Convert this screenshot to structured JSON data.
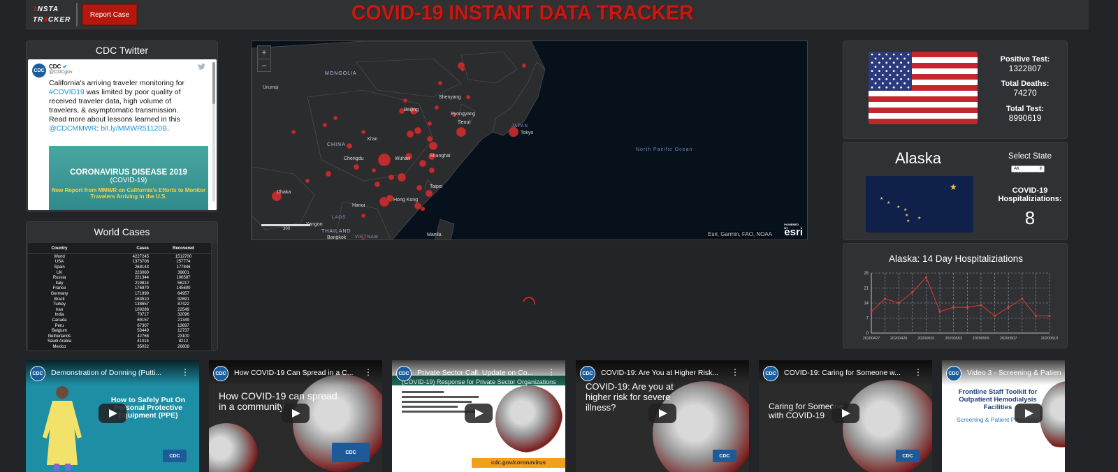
{
  "header": {
    "logo_line1_a": "1",
    "logo_line1_b": "NSTA",
    "logo_line2_a": "TR",
    "logo_line2_b": "9",
    "logo_line2_c": "CKER",
    "report_button": "Report Case",
    "title": "COVID-19 INSTANT DATA TRACKER"
  },
  "twitter": {
    "title": "CDC Twitter",
    "avatar": "CDC",
    "name": "CDC",
    "handle": "@CDCgov",
    "text_1": "California's arriving traveler monitoring for ",
    "hashtag": "#COVID19",
    "text_2": " was limited by poor quality of received traveler data, high volume of travelers, & asymptomatic transmission. Read more about lessons learned in this ",
    "mention": "@CDCMMWR",
    "text_3": ": ",
    "link": "bit.ly/MMWR51120B",
    "text_4": ".",
    "card_heading": "CORONAVIRUS DISEASE 2019",
    "card_sub": "(COVID-19)",
    "card_note": "New Report from MMWR on California's Efforts to Monitor Travelers Arriving in the U.S."
  },
  "world": {
    "title": "World Cases",
    "columns": [
      "Country",
      "Cases",
      "Recovered"
    ],
    "rows": [
      [
        "World",
        "4227245",
        "1512700"
      ],
      [
        "USA",
        "1373706",
        "257774"
      ],
      [
        "Spain",
        "268143",
        "177846"
      ],
      [
        "UK",
        "223060",
        "39801"
      ],
      [
        "Russia",
        "221344",
        "106587"
      ],
      [
        "Italy",
        "219814",
        "56217"
      ],
      [
        "France",
        "176970",
        "145600"
      ],
      [
        "Germany",
        "171999",
        "64957"
      ],
      [
        "Brazil",
        "163510",
        "92691"
      ],
      [
        "Turkey",
        "138657",
        "87422"
      ],
      [
        "Iran",
        "109286",
        "22549"
      ],
      [
        "India",
        "70717",
        "32096"
      ],
      [
        "Canada",
        "69157",
        "21349"
      ],
      [
        "Peru",
        "67307",
        "13697"
      ],
      [
        "Belgium",
        "53449",
        "12737"
      ],
      [
        "Netherlands",
        "42768",
        "23100"
      ],
      [
        "Saudi Arabia",
        "41014",
        "8212"
      ],
      [
        "Mexico",
        "35022",
        "26608"
      ]
    ]
  },
  "map": {
    "zoom_in": "+",
    "zoom_out": "−",
    "labels": [
      "MONGOLIA",
      "Urumqi",
      "Beijing",
      "Shenyang",
      "Pyongyang",
      "Seoul",
      "JAPAN",
      "Tokyo",
      "CHINA",
      "Xi'an",
      "Chengdu",
      "Wuhan",
      "Shanghai",
      "North Pacific Ocean",
      "Dhaka",
      "Taipei",
      "Hong Kong",
      "Hanoi",
      "LAOS",
      "Yangon",
      "THAILAND",
      "Bangkok",
      "VIETNAM",
      "Manila"
    ],
    "attribution": "Esri, Garmin, FAO, NOAA",
    "powered": "POWERED BY",
    "brand": "esri",
    "scale": "300"
  },
  "usa": {
    "positive_label": "Positive Test:",
    "positive_value": "1322807",
    "deaths_label": "Total Deaths:",
    "deaths_value": "74270",
    "tests_label": "Total Test:",
    "tests_value": "8990619"
  },
  "state": {
    "name": "Alaska",
    "select_label": "Select State",
    "select_value": "AK",
    "hosp_label": "COVID-19 Hospitaliziations:",
    "hosp_value": "8"
  },
  "chart_data": {
    "type": "line",
    "title": "Alaska: 14 Day Hospitaliziations",
    "x": [
      "20200427",
      "20200428",
      "20200429",
      "20200430",
      "20200501",
      "20200502",
      "20200503",
      "20200504",
      "20200505",
      "20200506",
      "20200507",
      "20200508",
      "20200509",
      "20200510"
    ],
    "x_tick_labels": [
      "20200427",
      "20200429",
      "20200501",
      "20200503",
      "20200505",
      "20200507",
      "20200510"
    ],
    "values": [
      10,
      16,
      14,
      19,
      26,
      10,
      12,
      12,
      13,
      8,
      12,
      16,
      8,
      8
    ],
    "yticks": [
      0,
      7,
      14,
      21,
      28
    ],
    "ylim": [
      0,
      28
    ],
    "line_color": "#e53935",
    "grid": true
  },
  "videos": [
    {
      "title": "Demonstration of Donning (Putti...",
      "body": "How to Safely Put On Personal Protective Equipment (PPE)",
      "logo": "CDC"
    },
    {
      "title": "How COVID-19 Can Spread in a C...",
      "body": "How COVID-19 can spread in a community",
      "logo": "CDC"
    },
    {
      "title": "Private Sector Call: Update on Co...",
      "body": "(COVID-19) Response for Private Sector Organizations",
      "logo": "CDC",
      "footer": "cdc.gov/coronavirus"
    },
    {
      "title": "COVID-19: Are You at Higher Risk...",
      "body": "COVID-19: Are you at higher risk for severe illness?",
      "logo": "CDC"
    },
    {
      "title": "COVID-19: Caring for Someone w...",
      "body": "Caring for Someone with COVID-19",
      "logo": "CDC"
    },
    {
      "title": "Video 3 - Screening & Patien",
      "body": "Frontline Staff Toolkit for Outpatient Hemodialysis Facilities",
      "sub": "Screening & Patient Placement",
      "logo": "CDC"
    }
  ],
  "colors": {
    "brand_red": "#c41a12",
    "panel_bg": "#2f3134",
    "page_bg": "#232427",
    "map_bg": "#07111c",
    "bubble": "#d32f2f"
  }
}
